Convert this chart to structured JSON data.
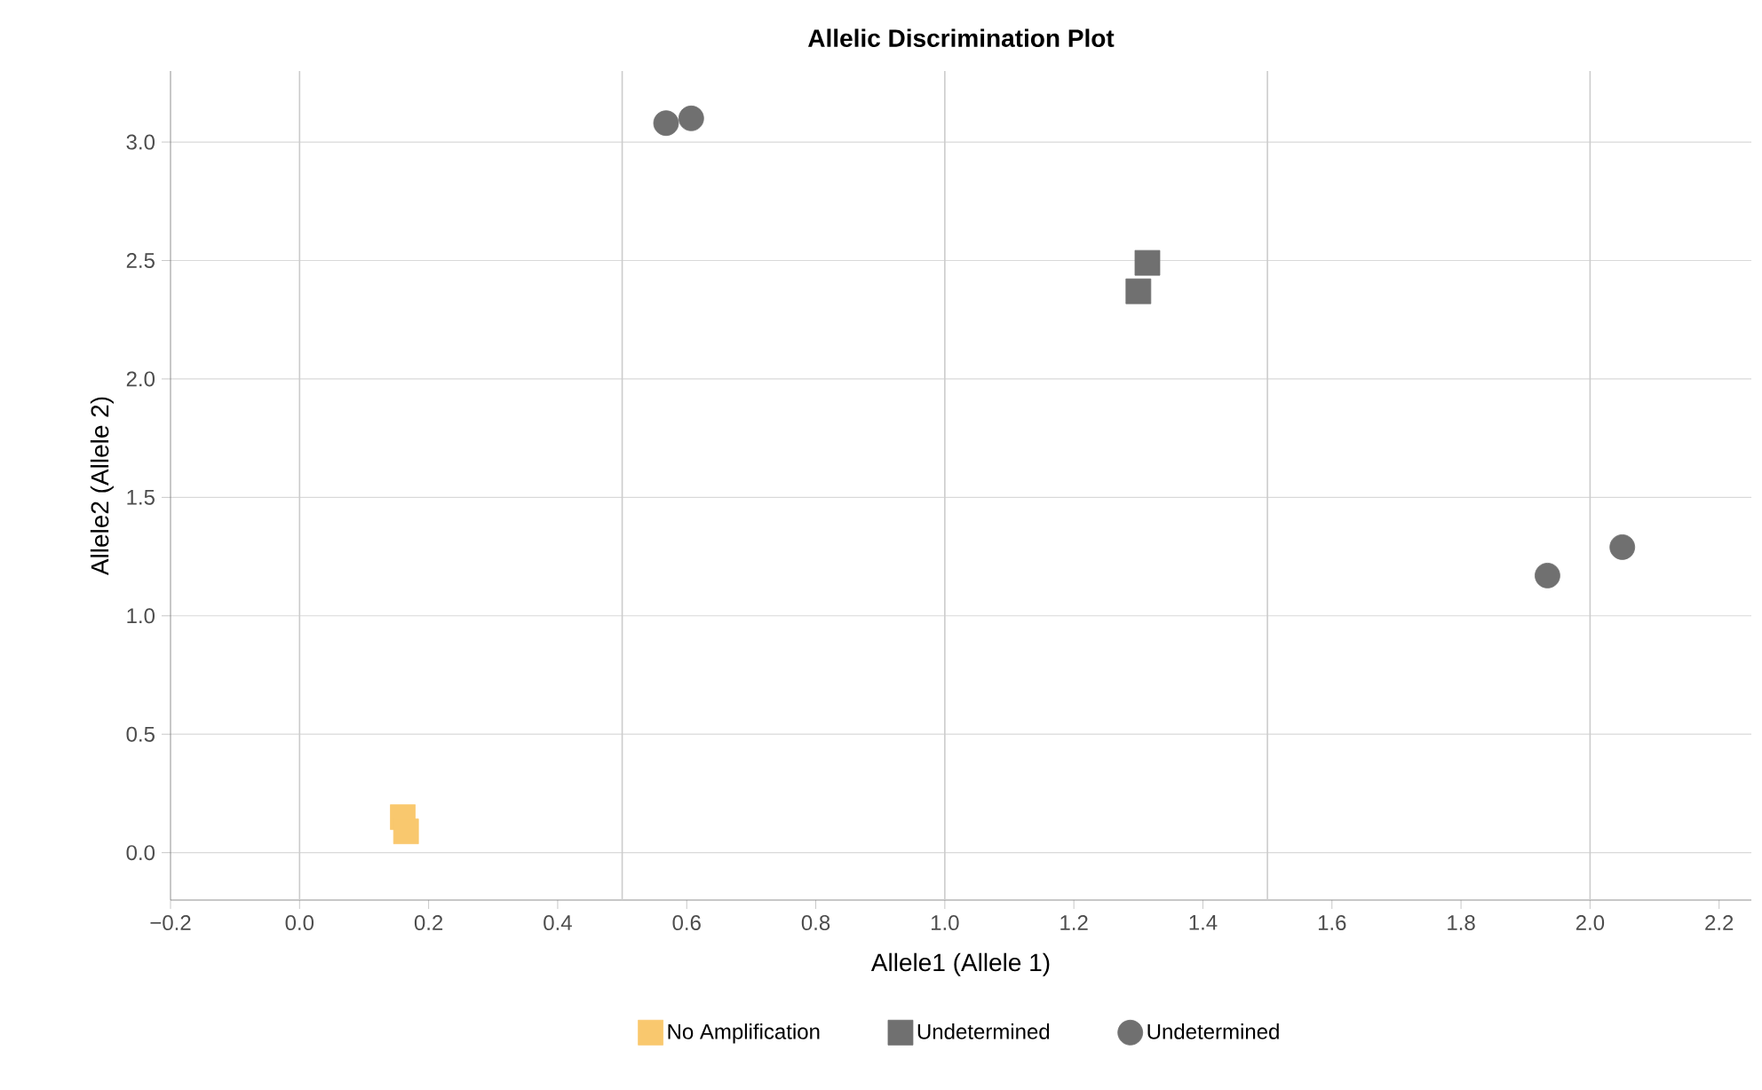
{
  "chart_data": {
    "type": "scatter",
    "title": "Allelic Discrimination Plot",
    "xlabel": "Allele1 (Allele 1)",
    "ylabel": "Allele2 (Allele 2)",
    "series": [
      {
        "name": "No Amplification",
        "color": "#f9c86e",
        "marker": "square",
        "x": [
          0.16,
          0.165
        ],
        "values": [
          0.15,
          0.09
        ]
      },
      {
        "name": "Undetermined",
        "color": "#707070",
        "marker": "square",
        "x": [
          1.3,
          1.314
        ],
        "values": [
          2.37,
          2.49
        ]
      },
      {
        "name": "Undetermined",
        "color": "#707070",
        "marker": "circle",
        "x": [
          0.568,
          0.607,
          1.934,
          2.05
        ],
        "values": [
          3.08,
          3.1,
          1.17,
          1.29
        ]
      }
    ],
    "xlim": [
      -0.2,
      2.25
    ],
    "ylim": [
      -0.2,
      3.3
    ],
    "xticks": [
      {
        "value": -0.2,
        "label": "−0.2"
      },
      {
        "value": 0,
        "label": "0.0"
      },
      {
        "value": 0.2,
        "label": "0.2"
      },
      {
        "value": 0.4,
        "label": "0.4"
      },
      {
        "value": 0.6,
        "label": "0.6"
      },
      {
        "value": 0.8,
        "label": "0.8"
      },
      {
        "value": 1.0,
        "label": "1.0"
      },
      {
        "value": 1.2,
        "label": "1.2"
      },
      {
        "value": 1.4,
        "label": "1.4"
      },
      {
        "value": 1.6,
        "label": "1.6"
      },
      {
        "value": 1.8,
        "label": "1.8"
      },
      {
        "value": 2.0,
        "label": "2.0"
      },
      {
        "value": 2.2,
        "label": "2.2"
      }
    ],
    "yticks": [
      {
        "value": 0,
        "label": "0.0"
      },
      {
        "value": 0.5,
        "label": "0.5"
      },
      {
        "value": 1.0,
        "label": "1.0"
      },
      {
        "value": 1.5,
        "label": "1.5"
      },
      {
        "value": 2.0,
        "label": "2.0"
      },
      {
        "value": 2.5,
        "label": "2.5"
      },
      {
        "value": 3.0,
        "label": "3.0"
      }
    ],
    "ref_lines": [
      {
        "axis": "x",
        "value": 0,
        "color": "#cccccc"
      },
      {
        "axis": "x",
        "value": 0.5,
        "color": "#cccccc"
      },
      {
        "axis": "x",
        "value": 1.0,
        "color": "#cccccc"
      },
      {
        "axis": "x",
        "value": 1.5,
        "color": "#cccccc"
      },
      {
        "axis": "x",
        "value": 2.0,
        "color": "#cccccc"
      }
    ],
    "grid": "y",
    "legend": "bottom"
  }
}
